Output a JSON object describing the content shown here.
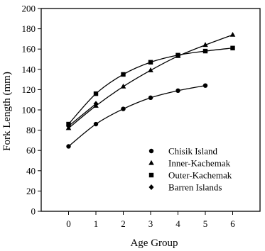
{
  "chart_data": {
    "type": "line",
    "title": "",
    "xlabel": "Age Group",
    "ylabel": "Fork Length (mm)",
    "xlim": [
      -1,
      7
    ],
    "ylim": [
      0,
      200
    ],
    "xticks": [
      "0",
      "1",
      "2",
      "3",
      "4",
      "5",
      "6"
    ],
    "yticks": [
      "0",
      "20",
      "40",
      "60",
      "80",
      "100",
      "120",
      "140",
      "160",
      "180",
      "200"
    ],
    "grid": false,
    "legend_position": "bottom-right",
    "series": [
      {
        "name": "Chisik Island",
        "marker": "circle",
        "x": [
          0,
          1,
          2,
          3,
          4,
          5
        ],
        "y": [
          64,
          86,
          101,
          112,
          119,
          124
        ]
      },
      {
        "name": "Inner-Kachemak",
        "marker": "triangle",
        "x": [
          0,
          1,
          2,
          3,
          4,
          5,
          6
        ],
        "y": [
          82,
          104,
          123,
          139,
          153,
          164,
          174
        ]
      },
      {
        "name": "Outer-Kachemak",
        "marker": "square",
        "x": [
          0,
          1,
          2,
          3,
          4,
          5,
          6
        ],
        "y": [
          86,
          116,
          135,
          147,
          154,
          158,
          161
        ]
      },
      {
        "name": "Barren Islands",
        "marker": "diamond",
        "x": [
          0,
          1
        ],
        "y": [
          84,
          106
        ]
      }
    ]
  }
}
